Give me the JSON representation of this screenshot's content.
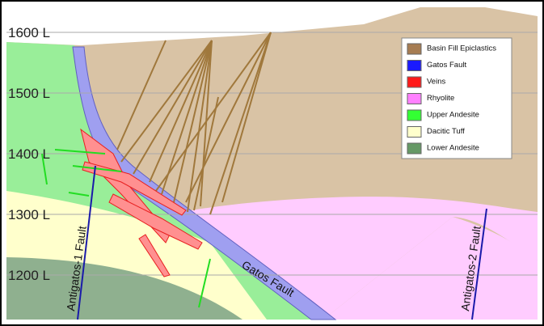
{
  "levels": [
    "1600 L",
    "1500 L",
    "1400 L",
    "1300 L",
    "1200 L"
  ],
  "legend": [
    {
      "label": "Basin Fill Epiclastics",
      "color": "#a67c52"
    },
    {
      "label": "Gatos Fault",
      "color": "#1a1aff"
    },
    {
      "label": "Veins",
      "color": "#ff1a1a"
    },
    {
      "label": "Rhyolite",
      "color": "#ff80ff"
    },
    {
      "label": "Upper Andesite",
      "color": "#33ff33"
    },
    {
      "label": "Dacitic Tuff",
      "color": "#ffffcc"
    },
    {
      "label": "Lower Andesite",
      "color": "#669966"
    }
  ],
  "faults": {
    "antigatos_1": "Antigatos-1 Fault",
    "gatos": "Gatos Fault",
    "antigatos_2": "Antigatos-2 Fault"
  }
}
